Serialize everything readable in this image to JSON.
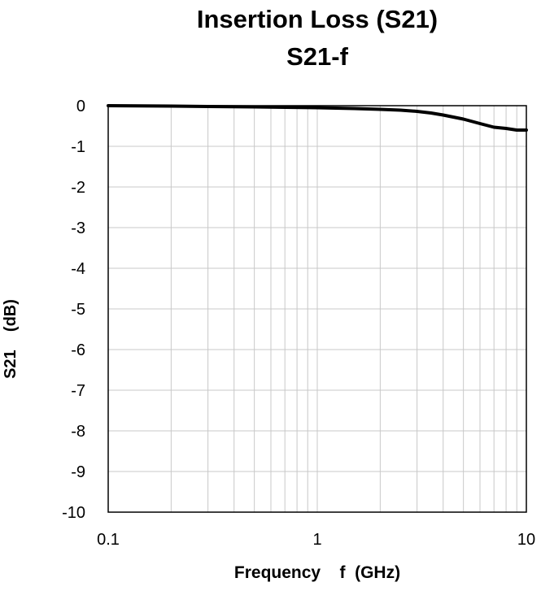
{
  "chart_data": {
    "type": "line",
    "title": "Insertion Loss (S21)",
    "subtitle": "S21-f",
    "xlabel": "Frequency    f  (GHz)",
    "ylabel": "S21    (dB)",
    "xscale": "log",
    "xlim": [
      0.1,
      10
    ],
    "ylim": [
      -10,
      0
    ],
    "x_ticks": [
      "0.1",
      "1",
      "10"
    ],
    "y_ticks": [
      "0",
      "-1",
      "-2",
      "-3",
      "-4",
      "-5",
      "-6",
      "-7",
      "-8",
      "-9",
      "-10"
    ],
    "grid": true,
    "line_color": "#000000",
    "series": [
      {
        "x": [
          0.1,
          0.2,
          0.3,
          0.5,
          0.7,
          1,
          1.5,
          2,
          2.5,
          3,
          3.5,
          4,
          5,
          6,
          7,
          8,
          9,
          10
        ],
        "values": [
          0,
          -0.01,
          -0.02,
          -0.03,
          -0.04,
          -0.05,
          -0.07,
          -0.09,
          -0.11,
          -0.14,
          -0.18,
          -0.23,
          -0.33,
          -0.44,
          -0.53,
          -0.56,
          -0.6,
          -0.6
        ]
      }
    ]
  }
}
